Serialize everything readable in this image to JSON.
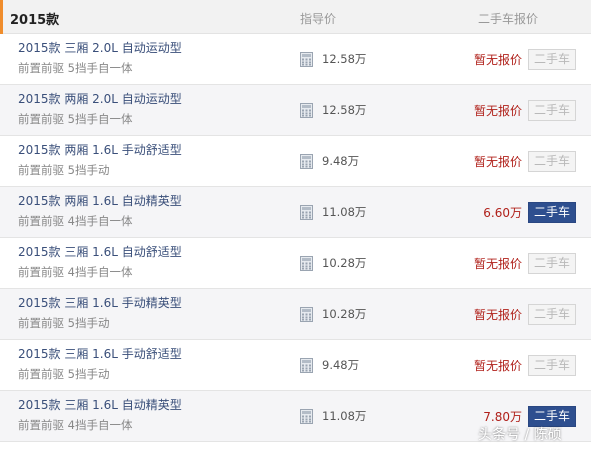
{
  "header": {
    "year": "2015款",
    "col_guide": "指导价",
    "col_used": "二手车报价"
  },
  "rows": [
    {
      "name": "2015款 三厢 2.0L 自动运动型",
      "spec": "前置前驱 5挡手自一体",
      "price": "12.58万",
      "quote": "暂无报价",
      "button": "二手车",
      "active": false
    },
    {
      "name": "2015款 两厢 2.0L 自动运动型",
      "spec": "前置前驱 5挡手自一体",
      "price": "12.58万",
      "quote": "暂无报价",
      "button": "二手车",
      "active": false
    },
    {
      "name": "2015款 两厢 1.6L 手动舒适型",
      "spec": "前置前驱 5挡手动",
      "price": "9.48万",
      "quote": "暂无报价",
      "button": "二手车",
      "active": false
    },
    {
      "name": "2015款 两厢 1.6L 自动精英型",
      "spec": "前置前驱 4挡手自一体",
      "price": "11.08万",
      "quote": "6.60万",
      "button": "二手车",
      "active": true
    },
    {
      "name": "2015款 三厢 1.6L 自动舒适型",
      "spec": "前置前驱 4挡手自一体",
      "price": "10.28万",
      "quote": "暂无报价",
      "button": "二手车",
      "active": false
    },
    {
      "name": "2015款 三厢 1.6L 手动精英型",
      "spec": "前置前驱 5挡手动",
      "price": "10.28万",
      "quote": "暂无报价",
      "button": "二手车",
      "active": false
    },
    {
      "name": "2015款 三厢 1.6L 手动舒适型",
      "spec": "前置前驱 5挡手动",
      "price": "9.48万",
      "quote": "暂无报价",
      "button": "二手车",
      "active": false
    },
    {
      "name": "2015款 三厢 1.6L 自动精英型",
      "spec": "前置前驱 4挡手自一体",
      "price": "11.08万",
      "quote": "7.80万",
      "button": "二手车",
      "active": true
    }
  ],
  "icons": {
    "calculator": "calculator-icon"
  },
  "colors": {
    "accent": "#f08d2c",
    "quote_red": "#b0201a",
    "button_active": "#2e4f8f",
    "name_blue": "#3a4f7a"
  },
  "watermark": "头条号 / 陈硕"
}
